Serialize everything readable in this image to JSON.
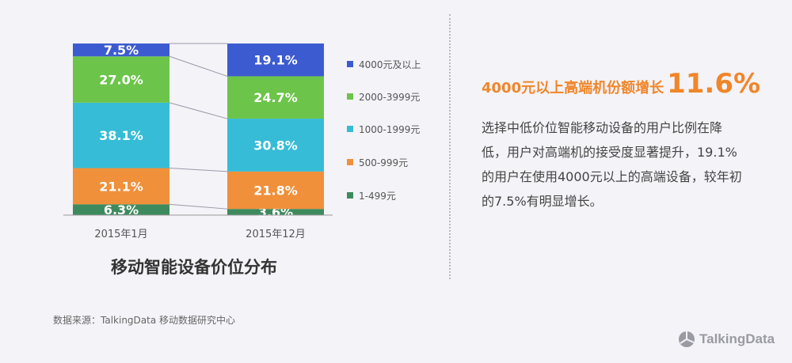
{
  "chart_data": {
    "type": "bar",
    "stacked": true,
    "title": "移动智能设备价位分布",
    "categories": [
      "2015年1月",
      "2015年12月"
    ],
    "series": [
      {
        "name": "4000元及以上",
        "color": "#3d5bd0",
        "values": [
          7.5,
          19.1
        ],
        "labels": [
          "7.5%",
          "19.1%"
        ]
      },
      {
        "name": "2000-3999元",
        "color": "#6cc54a",
        "values": [
          27.0,
          24.7
        ],
        "labels": [
          "27.0%",
          "24.7%"
        ]
      },
      {
        "name": "1000-1999元",
        "color": "#36bcd6",
        "values": [
          38.1,
          30.8
        ],
        "labels": [
          "38.1%",
          "30.8%"
        ]
      },
      {
        "name": "500-999元",
        "color": "#f0903a",
        "values": [
          21.1,
          21.8
        ],
        "labels": [
          "21.1%",
          "21.8%"
        ]
      },
      {
        "name": "1-499元",
        "color": "#3d8a5e",
        "values": [
          6.3,
          3.6
        ],
        "labels": [
          "6.3%",
          "3.6%"
        ]
      }
    ],
    "ylim": [
      0,
      100
    ],
    "legend_position": "right"
  },
  "insight": {
    "headline_text": "4000元以上高端机份额增长",
    "headline_value": "11.6%",
    "body": "选择中低价位智能移动设备的用户比例在降低，用户对高端机的接受度显著提升，19.1%的用户在使用4000元以上的高端设备，较年初的7.5%有明显增长。"
  },
  "source": "数据来源：TalkingData 移动数据研究中心",
  "logo_text": "TalkingData",
  "colors": {
    "accent": "#f0862a",
    "background": "#f4f3f8"
  }
}
